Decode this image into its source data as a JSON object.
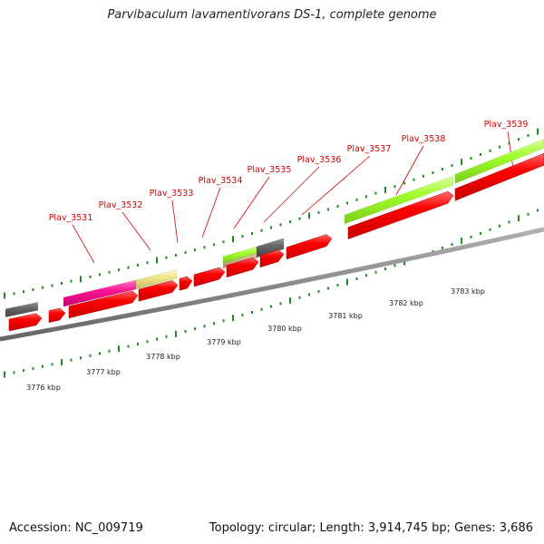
{
  "title": "Parvibaculum lavamentivorans DS-1, complete genome",
  "footer": {
    "accession": "Accession: NC_009719",
    "topology": "Topology: circular; Length: 3,914,745 bp; Genes: 3,686"
  },
  "colors": {
    "cds_forward": "#ff0000",
    "backbone": "#777777",
    "tick": "#228b22",
    "gene_label": "#d40000",
    "green_feature": "#a0ff2a",
    "magenta_feature": "#ff1493",
    "khaki_feature": "#f0e68c",
    "gray_feature": "#666666"
  },
  "gene_labels": [
    "Plav_3531",
    "Plav_3532",
    "Plav_3533",
    "Plav_3534",
    "Plav_3535",
    "Plav_3536",
    "Plav_3537",
    "Plav_3538",
    "Plav_3539"
  ],
  "kbp_labels": [
    "3776 kbp",
    "3777 kbp",
    "3778 kbp",
    "3779 kbp",
    "3780 kbp",
    "3781 kbp",
    "3782 kbp",
    "3783 kbp"
  ]
}
